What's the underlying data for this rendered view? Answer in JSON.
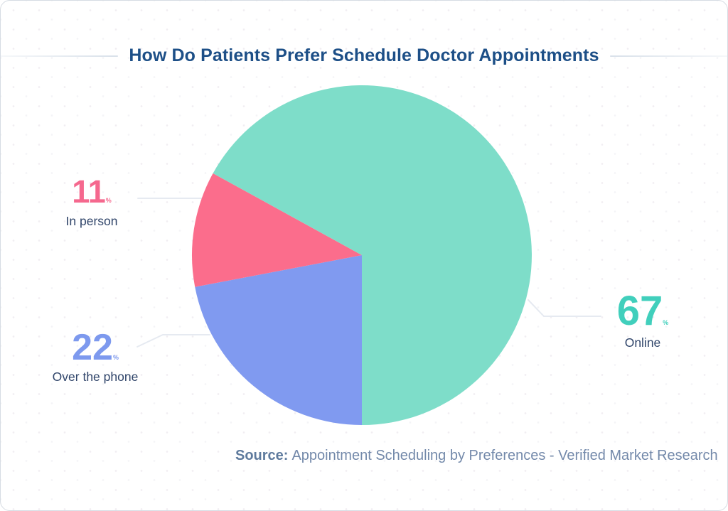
{
  "header": {
    "title": "How Do Patients Prefer Schedule Doctor Appointments",
    "title_color": "#1d4f87"
  },
  "chart_data": {
    "type": "pie",
    "title": "How Do Patients Prefer Schedule Doctor Appointments",
    "unit": "%",
    "start_angle_deg": 180,
    "direction": "clockwise",
    "grid": false,
    "legend_position": "callout-labels",
    "slices": [
      {
        "label": "Over the phone",
        "value": 22,
        "color": "#809af0",
        "label_color": "#7d99ee"
      },
      {
        "label": "In person",
        "value": 11,
        "color": "#fb6d8c",
        "label_color": "#f5688e"
      },
      {
        "label": "Online",
        "value": 67,
        "color": "#7eddc9",
        "label_color": "#41cfbc"
      }
    ]
  },
  "source": {
    "prefix": "Source:",
    "text": "Appointment Scheduling by Preferences - Verified Market Research"
  },
  "colors": {
    "slice_label_text": "#30456a",
    "source_prefix": "#5e7a9d",
    "source_text": "#7389aa",
    "leader_line": "#e6eaf1"
  }
}
